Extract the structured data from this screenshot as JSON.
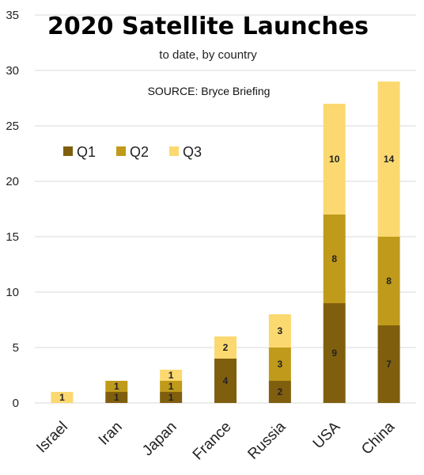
{
  "chart_data": {
    "type": "bar",
    "stacked": true,
    "title": "2020 Satellite Launches",
    "subtitle": "to date, by country",
    "source": "SOURCE: Bryce Briefing",
    "categories": [
      "Israel",
      "Iran",
      "Japan",
      "France",
      "Russia",
      "USA",
      "China"
    ],
    "series": [
      {
        "name": "Q1",
        "color": "#7f5f0e",
        "values": [
          0,
          1,
          1,
          4,
          2,
          9,
          7
        ]
      },
      {
        "name": "Q2",
        "color": "#c09a1a",
        "values": [
          0,
          1,
          1,
          0,
          3,
          8,
          8
        ]
      },
      {
        "name": "Q3",
        "color": "#fbd970",
        "values": [
          1,
          0,
          1,
          2,
          3,
          10,
          14
        ]
      }
    ],
    "ylim": [
      0,
      35
    ],
    "yticks": [
      0,
      5,
      10,
      15,
      20,
      25,
      30,
      35
    ],
    "grid": true,
    "legend_position": "upper-left",
    "xlabel": "",
    "ylabel": ""
  }
}
